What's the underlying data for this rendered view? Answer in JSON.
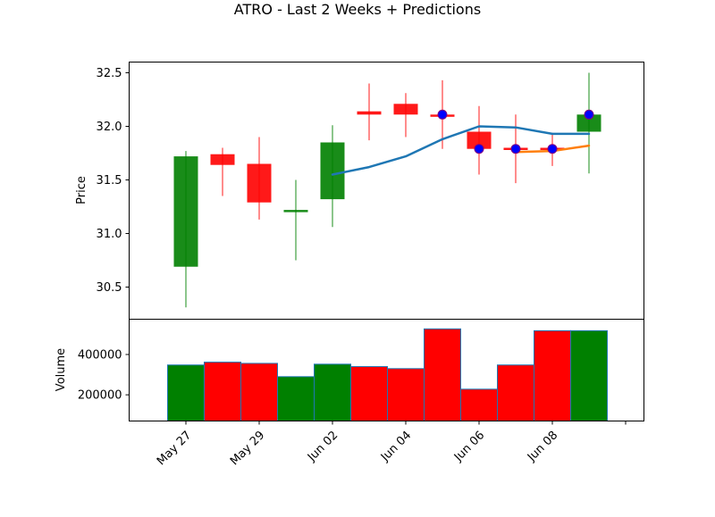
{
  "chart_data": {
    "type": "candlestick",
    "title": "ATRO - Last 2 Weeks + Predictions",
    "xtick_labels": [
      "May 27",
      "May 29",
      "Jun 02",
      "Jun 04",
      "Jun 06",
      "Jun 08",
      ""
    ],
    "price_panel": {
      "ylabel": "Price",
      "ylim": [
        30.2,
        32.6
      ],
      "yticks": [
        30.5,
        31.0,
        31.5,
        32.0,
        32.5
      ],
      "ytick_labels": [
        "30.5",
        "31.0",
        "31.5",
        "32.0",
        "32.5"
      ],
      "candles": [
        {
          "open": 30.69,
          "high": 31.77,
          "low": 30.31,
          "close": 31.72,
          "color": "#008000"
        },
        {
          "open": 31.74,
          "high": 31.8,
          "low": 31.35,
          "close": 31.64,
          "color": "#ff0000"
        },
        {
          "open": 31.65,
          "high": 31.9,
          "low": 31.13,
          "close": 31.29,
          "color": "#ff0000"
        },
        {
          "open": 31.2,
          "high": 31.5,
          "low": 30.75,
          "close": 31.22,
          "color": "#008000"
        },
        {
          "open": 31.32,
          "high": 32.01,
          "low": 31.06,
          "close": 31.85,
          "color": "#008000"
        },
        {
          "open": 32.14,
          "high": 32.4,
          "low": 31.87,
          "close": 32.11,
          "color": "#ff0000"
        },
        {
          "open": 32.21,
          "high": 32.31,
          "low": 31.9,
          "close": 32.11,
          "color": "#ff0000"
        },
        {
          "open": 32.11,
          "high": 32.43,
          "low": 31.79,
          "close": 32.1,
          "color": "#ff0000"
        },
        {
          "open": 31.95,
          "high": 32.19,
          "low": 31.55,
          "close": 31.79,
          "color": "#ff0000"
        },
        {
          "open": 31.8,
          "high": 32.11,
          "low": 31.47,
          "close": 31.79,
          "color": "#ff0000"
        },
        {
          "open": 31.8,
          "high": 31.94,
          "low": 31.63,
          "close": 31.79,
          "color": "#ff0000"
        },
        {
          "open": 31.95,
          "high": 32.5,
          "low": 31.56,
          "close": 32.11,
          "color": "#008000"
        }
      ],
      "lines": [
        {
          "color": "#1f77b4",
          "x": [
            4,
            5,
            6,
            7,
            8,
            9,
            10,
            11
          ],
          "y": [
            31.55,
            31.62,
            31.72,
            31.88,
            32.0,
            31.99,
            31.93,
            31.93
          ]
        },
        {
          "color": "#ff7f0e",
          "x": [
            9,
            10,
            11
          ],
          "y": [
            31.76,
            31.77,
            31.82
          ]
        }
      ],
      "markers": {
        "color": "#0000ff",
        "x": [
          7,
          8,
          9,
          10,
          11
        ],
        "y": [
          32.11,
          31.79,
          31.79,
          31.79,
          32.11
        ]
      }
    },
    "volume_panel": {
      "ylabel": "Volume",
      "ylim": [
        70000,
        575000
      ],
      "yticks": [
        200000,
        400000
      ],
      "ytick_labels": [
        "200000",
        "400000"
      ],
      "bars": [
        {
          "value": 348000,
          "color": "#008000"
        },
        {
          "value": 362000,
          "color": "#ff0000"
        },
        {
          "value": 356000,
          "color": "#ff0000"
        },
        {
          "value": 290000,
          "color": "#008000"
        },
        {
          "value": 352000,
          "color": "#008000"
        },
        {
          "value": 340000,
          "color": "#ff0000"
        },
        {
          "value": 330000,
          "color": "#ff0000"
        },
        {
          "value": 527000,
          "color": "#ff0000"
        },
        {
          "value": 228000,
          "color": "#ff0000"
        },
        {
          "value": 348000,
          "color": "#ff0000"
        },
        {
          "value": 518000,
          "color": "#ff0000"
        },
        {
          "value": 518000,
          "color": "#008000"
        }
      ]
    },
    "legend": "none",
    "grid": false
  }
}
